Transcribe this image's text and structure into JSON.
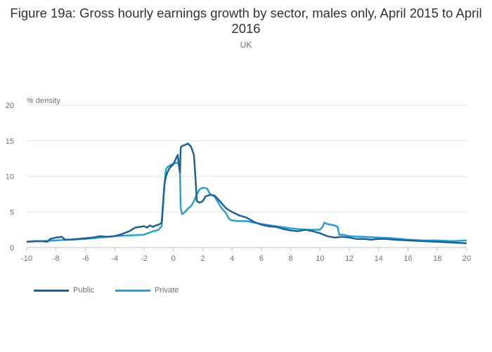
{
  "chart_data": {
    "type": "line",
    "title": "Figure 19a: Gross hourly earnings growth by sector, males only, April 2015 to April 2016",
    "subtitle": "UK",
    "ylabel": "% density",
    "xlabel": "",
    "xlim": [
      -10,
      20
    ],
    "ylim": [
      0,
      20
    ],
    "xticks": [
      -10,
      -8,
      -6,
      -4,
      -2,
      0,
      2,
      4,
      6,
      8,
      10,
      12,
      14,
      16,
      18,
      20
    ],
    "yticks": [
      0,
      5,
      10,
      15,
      20
    ],
    "series": [
      {
        "name": "Public",
        "color": "#206095",
        "x": [
          -10,
          -9.5,
          -9,
          -8.6,
          -8.4,
          -8.2,
          -8,
          -7.6,
          -7.4,
          -7,
          -6.5,
          -6,
          -5.5,
          -5,
          -4.5,
          -4,
          -3.5,
          -3,
          -2.6,
          -2.3,
          -2,
          -1.8,
          -1.6,
          -1.4,
          -1.2,
          -1,
          -0.8,
          -0.6,
          -0.5,
          -0.4,
          -0.3,
          -0.2,
          0,
          0.2,
          0.3,
          0.4,
          0.45,
          0.5,
          0.6,
          0.8,
          1,
          1.2,
          1.4,
          1.5,
          1.6,
          1.8,
          2,
          2.2,
          2.5,
          2.8,
          3,
          3.3,
          3.6,
          4,
          4.5,
          5,
          5.5,
          6,
          6.5,
          7,
          7.5,
          8,
          8.5,
          9,
          9.5,
          10,
          10.5,
          11,
          11.5,
          12,
          12.5,
          13,
          13.5,
          14,
          14.5,
          15,
          16,
          17,
          18,
          19,
          20
        ],
        "y": [
          0.8,
          0.9,
          0.9,
          0.8,
          1.2,
          1.3,
          1.4,
          1.5,
          1.1,
          1.1,
          1.2,
          1.3,
          1.4,
          1.6,
          1.5,
          1.6,
          1.9,
          2.3,
          2.8,
          2.9,
          3,
          2.8,
          3.1,
          2.9,
          3.1,
          3.2,
          3.5,
          9,
          10,
          10.6,
          11,
          11.3,
          11.7,
          12.6,
          13,
          11.2,
          10.5,
          14,
          14.3,
          14.4,
          14.6,
          14.2,
          13,
          10,
          6.5,
          6.3,
          6.5,
          7.2,
          7.4,
          7.3,
          6.9,
          6.2,
          5.5,
          5,
          4.5,
          4.2,
          3.6,
          3.2,
          3,
          2.9,
          2.6,
          2.4,
          2.3,
          2.5,
          2.3,
          2,
          1.6,
          1.4,
          1.5,
          1.4,
          1.2,
          1.2,
          1.1,
          1.2,
          1.2,
          1.1,
          1,
          0.9,
          0.8,
          0.7,
          0.6
        ]
      },
      {
        "name": "Private",
        "color": "#27a0cc",
        "x": [
          -10,
          -9,
          -8,
          -7,
          -6,
          -5,
          -4,
          -3,
          -2,
          -1.5,
          -1,
          -0.8,
          -0.6,
          -0.5,
          -0.4,
          -0.2,
          0,
          0.2,
          0.35,
          0.45,
          0.5,
          0.6,
          0.8,
          1,
          1.2,
          1.4,
          1.6,
          1.8,
          2,
          2.3,
          2.5,
          2.8,
          3,
          3.3,
          3.6,
          3.8,
          4,
          4.5,
          5,
          5.5,
          6,
          7,
          8,
          9,
          10,
          10.2,
          10.3,
          10.5,
          11,
          11.2,
          11.3,
          11.6,
          12,
          13,
          14,
          15,
          16,
          17,
          18,
          19,
          20
        ],
        "y": [
          0.8,
          0.9,
          1,
          1.1,
          1.2,
          1.4,
          1.6,
          1.7,
          1.8,
          2.2,
          2.5,
          3,
          9,
          11,
          11.3,
          11.6,
          11.8,
          11.9,
          11.8,
          10.5,
          5.5,
          4.7,
          5,
          5.5,
          5.8,
          6.5,
          7.5,
          8.2,
          8.4,
          8.3,
          7.5,
          7.2,
          6.5,
          5.5,
          4.8,
          4,
          3.8,
          3.7,
          3.7,
          3.5,
          3.3,
          3,
          2.7,
          2.5,
          2.5,
          3,
          3.5,
          3.3,
          3.1,
          2.9,
          1.8,
          1.8,
          1.6,
          1.5,
          1.4,
          1.3,
          1.1,
          1,
          1,
          0.9,
          1
        ]
      }
    ]
  }
}
